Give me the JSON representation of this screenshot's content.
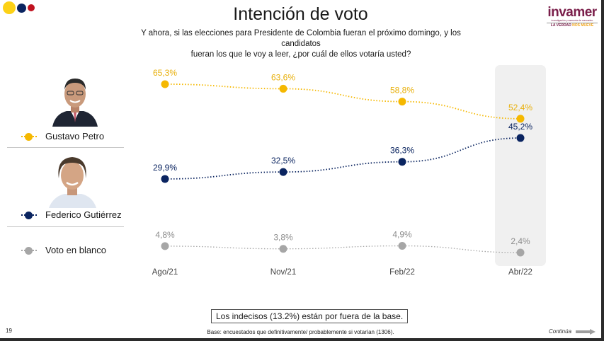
{
  "header": {
    "title": "Intención de voto",
    "subtitle_line1": "Y ahora, si las elecciones para Presidente de Colombia fueran el próximo domingo, y los candidatos",
    "subtitle_line2": "fueran los que le voy a leer, ¿por cuál de ellos votaría usted?",
    "decor_dot_colors": [
      "#fcd116",
      "#003087",
      "#ce1126"
    ]
  },
  "logo": {
    "brand": "invamer",
    "tagline": "investigación y asesoría de mercadeo",
    "slogan_part1": "LA VERDAD",
    "slogan_part2": "NOS MUEVE"
  },
  "legend": [
    {
      "name": "Gustavo Petro",
      "color": "#f5b800",
      "has_photo": true
    },
    {
      "name": "Federico Gutiérrez",
      "color": "#0a2460",
      "has_photo": true
    },
    {
      "name": "Voto en blanco",
      "color": "#a6a6a6",
      "has_photo": false
    }
  ],
  "chart_data": {
    "type": "line",
    "title": "Intención de voto",
    "categories": [
      "Ago/21",
      "Nov/21",
      "Feb/22",
      "Abr/22"
    ],
    "highlighted_category": "Abr/22",
    "series": [
      {
        "name": "Gustavo Petro",
        "color": "#f5b800",
        "values": [
          65.3,
          63.6,
          58.8,
          52.4
        ],
        "labels": [
          "65,3%",
          "63,6%",
          "58,8%",
          "52,4%"
        ]
      },
      {
        "name": "Federico Gutiérrez",
        "color": "#0a2460",
        "values": [
          29.9,
          32.5,
          36.3,
          45.2
        ],
        "labels": [
          "29,9%",
          "32,5%",
          "36,3%",
          "45,2%"
        ]
      },
      {
        "name": "Voto en blanco",
        "color": "#a6a6a6",
        "values": [
          4.8,
          3.8,
          4.9,
          2.4
        ],
        "labels": [
          "4,8%",
          "3,8%",
          "4,9%",
          "2,4%"
        ]
      }
    ],
    "xlabel": "",
    "ylabel": "",
    "grid": false,
    "legend_placement": "left"
  },
  "footer": {
    "note": "Los indecisos (13.2%) están por fuera de la base.",
    "page_number": "19",
    "base_text": "Base: encuestados que definitivamente/ probablemente si votarían (1306).",
    "continue_label": "Continúa"
  }
}
